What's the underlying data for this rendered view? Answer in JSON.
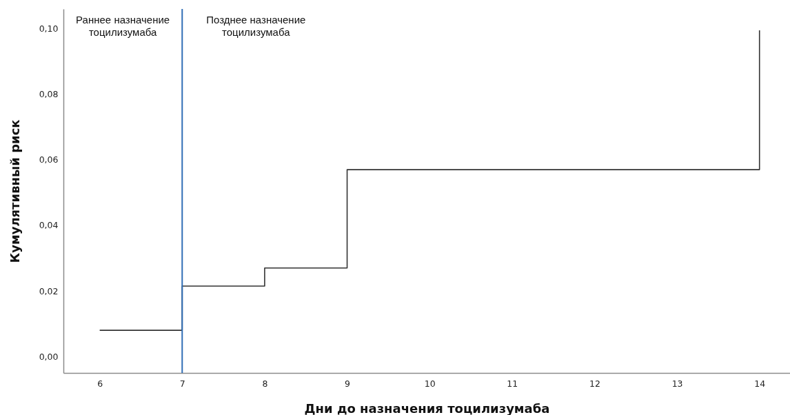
{
  "chart_data": {
    "type": "step",
    "xlabel": "Дни до назначения тоцилизумаба",
    "ylabel": "Кумулятивный риск",
    "x": [
      6,
      7,
      8,
      9,
      14
    ],
    "series": [
      {
        "color": "#333333",
        "values": [
          0.008,
          0.0215,
          0.027,
          0.057,
          0.0995
        ]
      }
    ],
    "xlim": [
      5.56,
      14.37
    ],
    "xticks": [
      6,
      7,
      8,
      9,
      10,
      11,
      12,
      13,
      14
    ],
    "ylim": [
      -0.005,
      0.106
    ],
    "yticks": [
      {
        "value": 0,
        "label": "0,00"
      },
      {
        "value": 0.02,
        "label": "0,02"
      },
      {
        "value": 0.04,
        "label": "0,04"
      },
      {
        "value": 0.06,
        "label": "0,06"
      },
      {
        "value": 0.08,
        "label": "0,08"
      },
      {
        "value": 0.1,
        "label": "0,10"
      }
    ],
    "ref_lines": [
      {
        "axis": "x",
        "value": 7,
        "color": "#2f6db5"
      }
    ],
    "annotations": [
      "Раннее назначение тоцилизумаба",
      "Позднее назначение тоцилизумаба"
    ],
    "grid": false
  }
}
